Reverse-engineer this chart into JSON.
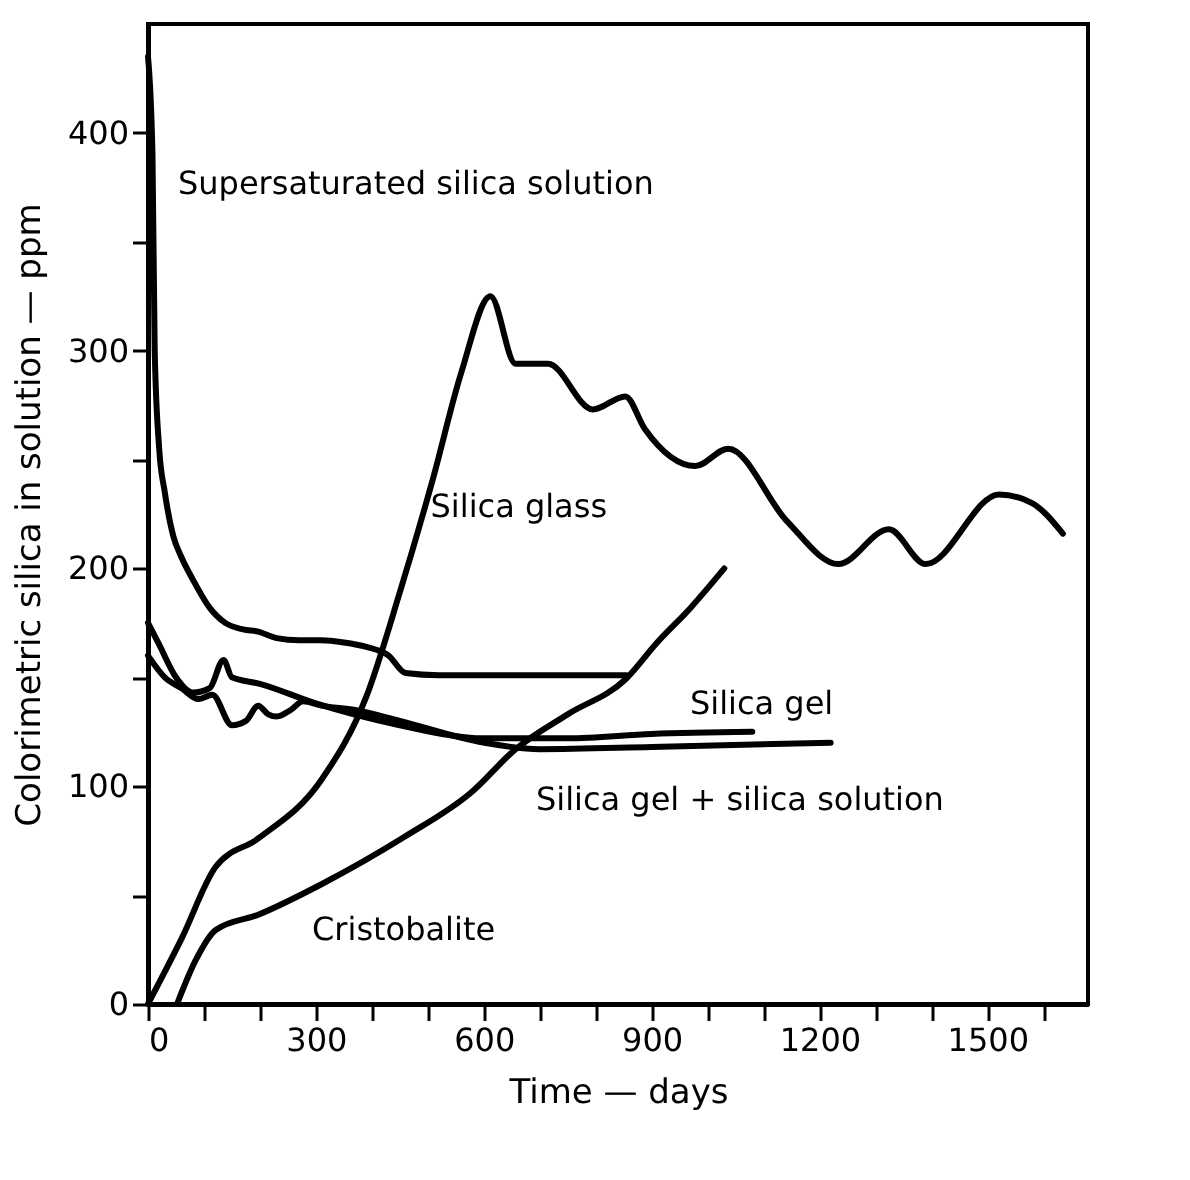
{
  "chart_data": {
    "type": "line",
    "xlabel": "Time — days",
    "ylabel": "Colorimetric silica in solution — ppm",
    "xlim": [
      0,
      1680
    ],
    "ylim": [
      0,
      450
    ],
    "xticks": [
      0,
      {
        "value": 100,
        "label": null
      },
      {
        "value": 200,
        "label": null
      },
      300,
      {
        "value": 400,
        "label": null
      },
      {
        "value": 500,
        "label": null
      },
      600,
      {
        "value": 700,
        "label": null
      },
      {
        "value": 800,
        "label": null
      },
      900,
      {
        "value": 1000,
        "label": null
      },
      {
        "value": 1100,
        "label": null
      },
      1200,
      {
        "value": 1300,
        "label": null
      },
      {
        "value": 1400,
        "label": null
      },
      1500,
      {
        "value": 1600,
        "label": null
      }
    ],
    "yticks": [
      0,
      {
        "value": 50,
        "label": null
      },
      100,
      {
        "value": 150,
        "label": null
      },
      200,
      {
        "value": 250,
        "label": null
      },
      300,
      {
        "value": 350,
        "label": null
      },
      400
    ],
    "grid": false,
    "marker": "none",
    "line_style": "solid",
    "series": [
      {
        "color": "#000000",
        "x": [
          0,
          8,
          12,
          20,
          30,
          45,
          60,
          80,
          110,
          138,
          170,
          197,
          230,
          270,
          310,
          350,
          390,
          430,
          460,
          520,
          650,
          855
        ],
        "values": [
          435,
          390,
          300,
          255,
          235,
          215,
          205,
          195,
          182,
          175,
          172,
          171,
          168,
          167,
          167,
          166,
          164,
          160,
          152,
          151,
          151,
          151
        ]
      },
      {
        "color": "#000000",
        "x": [
          0,
          20,
          50,
          80,
          110,
          135,
          150,
          200,
          300,
          450,
          600,
          750,
          900,
          1080
        ],
        "values": [
          175,
          165,
          150,
          143,
          145,
          158,
          150,
          147,
          138,
          128,
          122,
          122,
          124,
          125
        ]
      },
      {
        "color": "#000000",
        "x": [
          0,
          30,
          60,
          90,
          115,
          150,
          175,
          197,
          215,
          230,
          255,
          277,
          310,
          370,
          450,
          600,
          700,
          900,
          1220
        ],
        "values": [
          160,
          150,
          145,
          140,
          142,
          128,
          130,
          137,
          133,
          132,
          135,
          139,
          137,
          135,
          130,
          120,
          117,
          118,
          120
        ]
      },
      {
        "color": "#000000",
        "x": [
          0,
          60,
          121,
          197,
          310,
          390,
          450,
          508,
          560,
          612,
          657,
          715,
          795,
          853,
          888,
          978,
          1037,
          1141,
          1234,
          1324,
          1390,
          1521,
          1580,
          1635
        ],
        "values": [
          0,
          30,
          63,
          76,
          103,
          141,
          189,
          240,
          290,
          325,
          294,
          294,
          273,
          279,
          264,
          247,
          255,
          222,
          202,
          218,
          202,
          234,
          230,
          216
        ]
      },
      {
        "color": "#000000",
        "x": [
          52,
          85,
          121,
          197,
          310,
          460,
          577,
          657,
          750,
          853,
          910,
          970,
          1030
        ],
        "values": [
          0,
          20,
          34,
          41,
          55,
          77,
          97,
          117,
          133,
          149,
          166,
          182,
          200
        ]
      }
    ],
    "annotations": [
      "Supersaturated silica solution",
      {
        "text": "Silica glass",
        "x": 505,
        "y": 228
      },
      "Silica gel",
      "Silica gel + silica solution",
      "Cristobalite"
    ]
  }
}
